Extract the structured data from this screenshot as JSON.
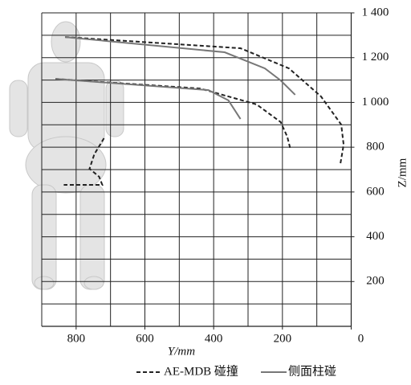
{
  "chart_data": {
    "type": "line",
    "x_label": "Y/mm",
    "y_label": "Z/mm",
    "xlim": [
      900,
      0
    ],
    "ylim": [
      0,
      1400
    ],
    "xticks": [
      800,
      600,
      400,
      200,
      0
    ],
    "yticks": [
      200,
      400,
      600,
      800,
      {
        "value": 1000,
        "label": "1 000"
      },
      {
        "value": 1200,
        "label": "1 200"
      },
      {
        "value": 1400,
        "label": "1 400"
      }
    ],
    "xgrid": [
      900,
      800,
      700,
      600,
      500,
      400,
      300,
      200,
      100,
      0
    ],
    "ygrid": [
      100,
      200,
      300,
      400,
      500,
      600,
      700,
      800,
      900,
      1000,
      1100,
      1200,
      1300,
      1400
    ],
    "series": [
      {
        "name": "AE-MDB 碰撞",
        "color": "#222222",
        "dash": true,
        "x": [
          832,
          322,
          181,
          88,
          29,
          22,
          32,
          null,
          860,
          439,
          275,
          205,
          186,
          177,
          null,
          719,
          747,
          761,
          733,
          724,
          836
        ],
        "values": [
          1292,
          1242,
          1152,
          1027,
          901,
          811,
          721,
          null,
          1105,
          1062,
          991,
          912,
          847,
          793,
          null,
          840,
          769,
          704,
          668,
          632,
          632
        ]
      },
      {
        "name": "侧面柱碰",
        "color": "#777777",
        "dash": false,
        "x": [
          832,
          368,
          251,
          205,
          163,
          null,
          860,
          415,
          357,
          322
        ],
        "values": [
          1292,
          1224,
          1152,
          1098,
          1034,
          null,
          1105,
          1055,
          1009,
          926
        ]
      }
    ]
  }
}
